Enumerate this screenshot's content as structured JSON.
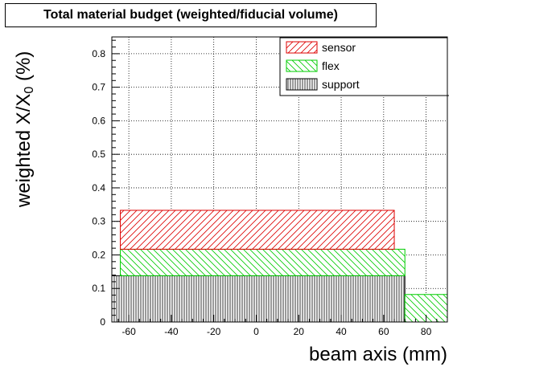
{
  "chart_data": {
    "type": "bar",
    "title": "Total material budget (weighted/fiducial volume)",
    "xlabel": "beam axis (mm)",
    "ylabel_main": "weighted X/X",
    "ylabel_sub": "0",
    "ylabel_tail": "  (%)",
    "xlim": [
      -68,
      90
    ],
    "ylim": [
      0,
      0.85
    ],
    "x_ticks": [
      -60,
      -40,
      -20,
      0,
      20,
      40,
      60,
      80
    ],
    "y_ticks": [
      0,
      0.1,
      0.2,
      0.3,
      0.4,
      0.5,
      0.6,
      0.7,
      0.8
    ],
    "x_tick_labels": [
      "-60",
      "-40",
      "-20",
      "0",
      "20",
      "40",
      "60",
      "80"
    ],
    "y_tick_labels": [
      "0",
      "0.1",
      "0.2",
      "0.3",
      "0.4",
      "0.5",
      "0.6",
      "0.7",
      "0.8"
    ],
    "grid": true,
    "legend_position": "top-right",
    "series": [
      {
        "name": "support",
        "color": "#000000",
        "pattern": "vertical",
        "bins": [
          {
            "x0": -68,
            "x1": 70,
            "y0": 0,
            "y1": 0.138
          }
        ]
      },
      {
        "name": "flex",
        "color": "#00cc00",
        "pattern": "diag-down",
        "bins": [
          {
            "x0": -64,
            "x1": 70,
            "y0": 0.138,
            "y1": 0.217
          },
          {
            "x0": 70,
            "x1": 90,
            "y0": 0,
            "y1": 0.082
          }
        ]
      },
      {
        "name": "sensor",
        "color": "#dd0000",
        "pattern": "diag-up",
        "bins": [
          {
            "x0": -64,
            "x1": 65,
            "y0": 0.217,
            "y1": 0.333
          }
        ]
      }
    ],
    "legend_order": [
      "sensor",
      "flex",
      "support"
    ]
  }
}
